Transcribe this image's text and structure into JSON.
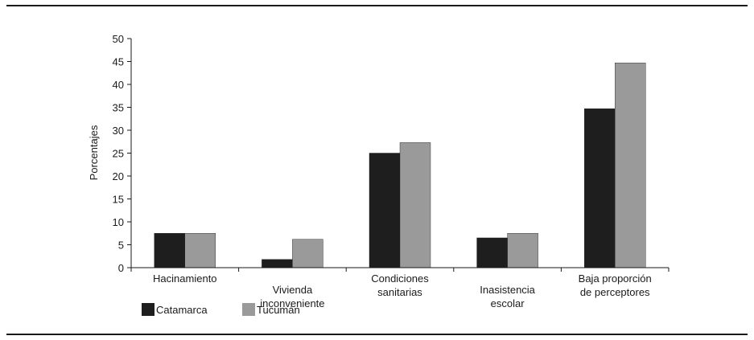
{
  "chart_data": {
    "type": "bar",
    "title": "",
    "xlabel": "",
    "ylabel": "Porcentajes",
    "ylim": [
      0,
      50
    ],
    "yticks": [
      0,
      5,
      10,
      15,
      20,
      25,
      30,
      35,
      40,
      45,
      50
    ],
    "grid": false,
    "legend_position": "bottom-left",
    "categories": [
      [
        "Hacinamiento"
      ],
      [
        "Vivienda",
        "inconveniente"
      ],
      [
        "Condiciones",
        "sanitarias"
      ],
      [
        "Inasistencia",
        "escolar"
      ],
      [
        "Baja proporción",
        "de perceptores"
      ]
    ],
    "series": [
      {
        "name": "Catamarca",
        "color": "#1e1e1e",
        "values": [
          7.5,
          1.8,
          25,
          6.5,
          34.7
        ]
      },
      {
        "name": "Tucumán",
        "color": "#9a9a9a",
        "values": [
          7.5,
          6.2,
          27.3,
          7.5,
          44.7
        ]
      }
    ]
  }
}
